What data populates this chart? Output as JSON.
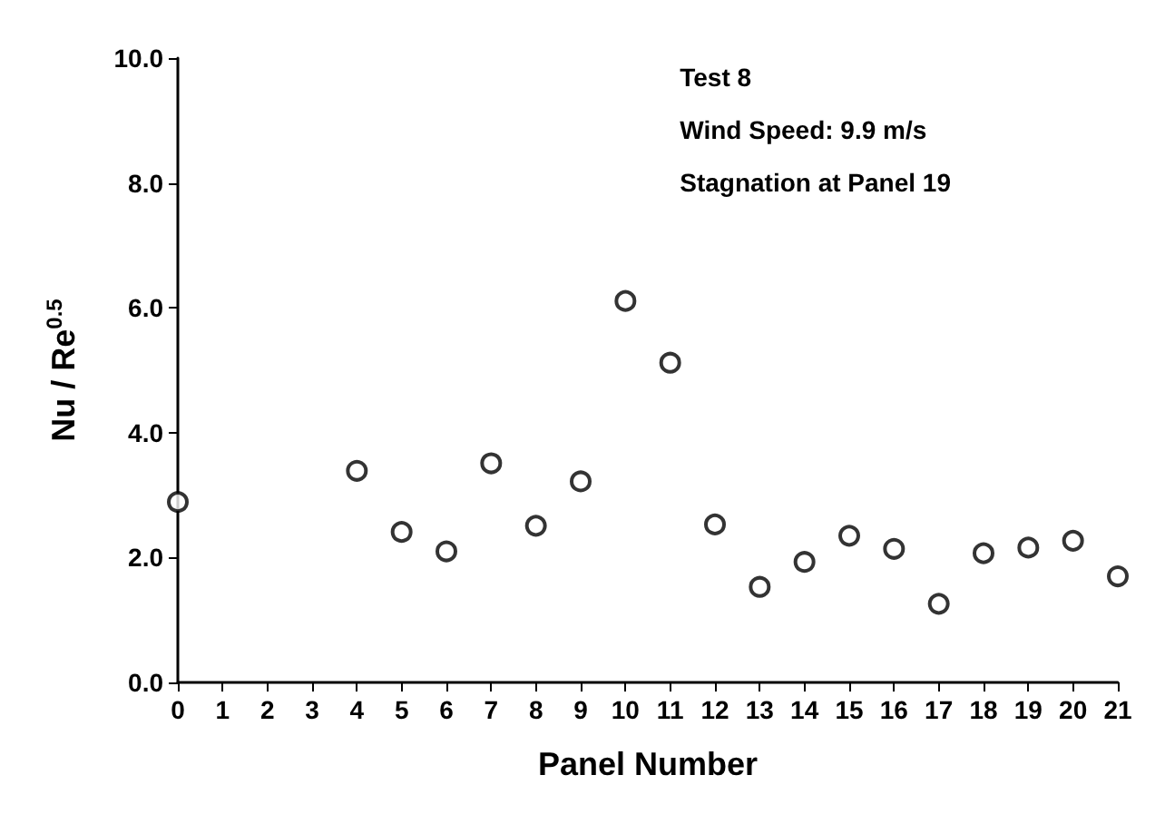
{
  "chart_data": {
    "type": "scatter",
    "xlabel": "Panel Number",
    "ylabel": "Nu / Re$^{0.5}$",
    "annotations": [
      "Test 8",
      "Wind Speed: 9.9 m/s",
      "Stagnation at Panel 19"
    ],
    "x": [
      0,
      4,
      5,
      6,
      7,
      8,
      9,
      10,
      11,
      12,
      13,
      14,
      15,
      16,
      17,
      18,
      19,
      20,
      21
    ],
    "values": [
      2.89,
      3.39,
      2.41,
      2.1,
      3.51,
      2.51,
      3.22,
      6.11,
      5.12,
      2.53,
      1.53,
      1.93,
      2.35,
      2.14,
      1.26,
      2.07,
      2.16,
      2.27,
      1.7
    ],
    "color": "#000000",
    "marker": "circle",
    "grid": false,
    "xlim": [
      0,
      21
    ],
    "xticks": [
      0,
      1,
      2,
      3,
      4,
      5,
      6,
      7,
      8,
      9,
      10,
      11,
      12,
      13,
      14,
      15,
      16,
      17,
      18,
      19,
      20,
      21
    ],
    "ylim": [
      0,
      10
    ],
    "yticks": [
      {
        "value": 0,
        "label": "0.0"
      },
      {
        "value": 2,
        "label": "2.0"
      },
      {
        "value": 4,
        "label": "4.0"
      },
      {
        "value": 6,
        "label": "6.0"
      },
      {
        "value": 8,
        "label": "8.0"
      },
      {
        "value": 10,
        "label": "10.0"
      }
    ]
  }
}
